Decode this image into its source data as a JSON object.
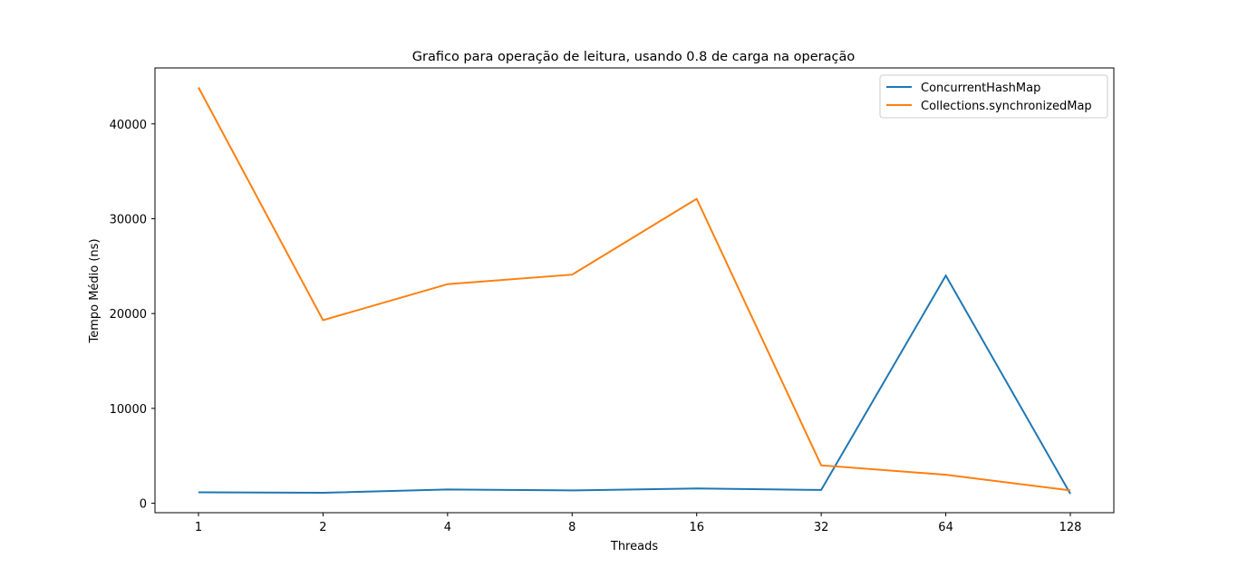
{
  "chart_data": {
    "type": "line",
    "title": "Grafico para operação de leitura, usando 0.8 de carga na operação",
    "xlabel": "Threads",
    "ylabel": "Tempo Médio (ns)",
    "categories": [
      "1",
      "2",
      "4",
      "8",
      "16",
      "32",
      "64",
      "128"
    ],
    "ylim": [
      -1000,
      45900
    ],
    "yticks": [
      0,
      10000,
      20000,
      30000,
      40000
    ],
    "ytick_labels": [
      "0",
      "10000",
      "20000",
      "30000",
      "40000"
    ],
    "grid": false,
    "legend_position": "top-right",
    "series": [
      {
        "name": "ConcurrentHashMap",
        "color": "#1f77b4",
        "values": [
          1150,
          1100,
          1450,
          1350,
          1550,
          1400,
          24000,
          1000
        ]
      },
      {
        "name": "Collections.synchronizedMap",
        "color": "#ff7f0e",
        "values": [
          43850,
          19300,
          23100,
          24100,
          32100,
          4000,
          3000,
          1350
        ]
      }
    ]
  }
}
